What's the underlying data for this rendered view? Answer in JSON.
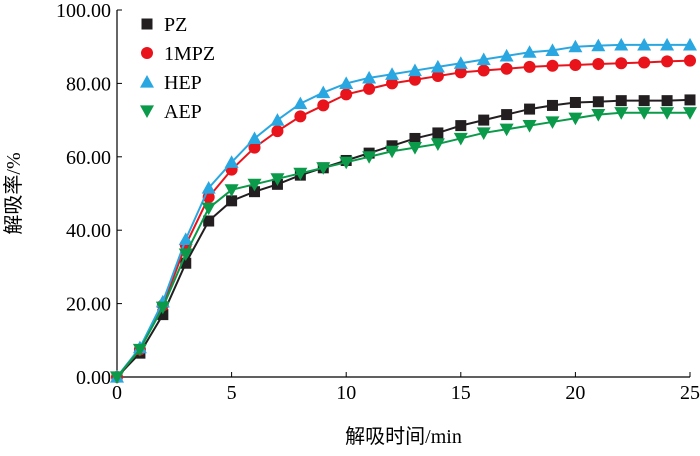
{
  "chart_data": {
    "type": "line",
    "title": "",
    "xlabel": "解吸时间/min",
    "ylabel": "解吸率/%",
    "xlim": [
      0,
      25
    ],
    "ylim": [
      0,
      100
    ],
    "x_ticks": [
      "0",
      "5",
      "10",
      "15",
      "20",
      "25"
    ],
    "y_ticks": [
      "0.00",
      "20.00",
      "40.00",
      "60.00",
      "80.00",
      "100.00"
    ],
    "grid": false,
    "legend_position": "top-left",
    "x": [
      0,
      1,
      2,
      3,
      4,
      5,
      6,
      7,
      8,
      9,
      10,
      11,
      12,
      13,
      14,
      15,
      16,
      17,
      18,
      19,
      20,
      21,
      22,
      23,
      24,
      25
    ],
    "series": [
      {
        "name": "PZ",
        "marker": "square",
        "color": "#231f20",
        "values": [
          0,
          6.5,
          17,
          31,
          42.5,
          48,
          50.5,
          52.5,
          55,
          57,
          59,
          61,
          63,
          65,
          66.5,
          68.5,
          70,
          71.5,
          73,
          74,
          74.8,
          75,
          75.3,
          75.3,
          75.3,
          75.5
        ]
      },
      {
        "name": "1MPZ",
        "marker": "circle",
        "color": "#e8131b",
        "values": [
          0,
          7.5,
          19.5,
          36,
          49,
          56.5,
          62.5,
          67,
          71,
          74,
          77,
          78.5,
          80,
          81,
          82,
          83,
          83.5,
          84,
          84.5,
          84.8,
          85,
          85.3,
          85.5,
          85.7,
          86,
          86.2
        ]
      },
      {
        "name": "HEP",
        "marker": "triangle-up",
        "color": "#2aa7e0",
        "values": [
          0,
          8,
          20.5,
          37.5,
          51.5,
          58.5,
          65,
          70,
          74.5,
          77.5,
          80,
          81.5,
          82.5,
          83.5,
          84.5,
          85.5,
          86.5,
          87.5,
          88.5,
          89,
          90,
          90.3,
          90.5,
          90.5,
          90.5,
          90.5
        ]
      },
      {
        "name": "AEP",
        "marker": "triangle-down",
        "color": "#0a9a4a",
        "values": [
          0,
          7.5,
          19,
          33.5,
          46,
          51,
          52.5,
          54,
          55.5,
          57,
          58.5,
          60,
          61.5,
          62.5,
          63.5,
          65,
          66.5,
          67.5,
          68.5,
          69.5,
          70.5,
          71.5,
          72,
          72,
          72,
          72
        ]
      }
    ]
  }
}
